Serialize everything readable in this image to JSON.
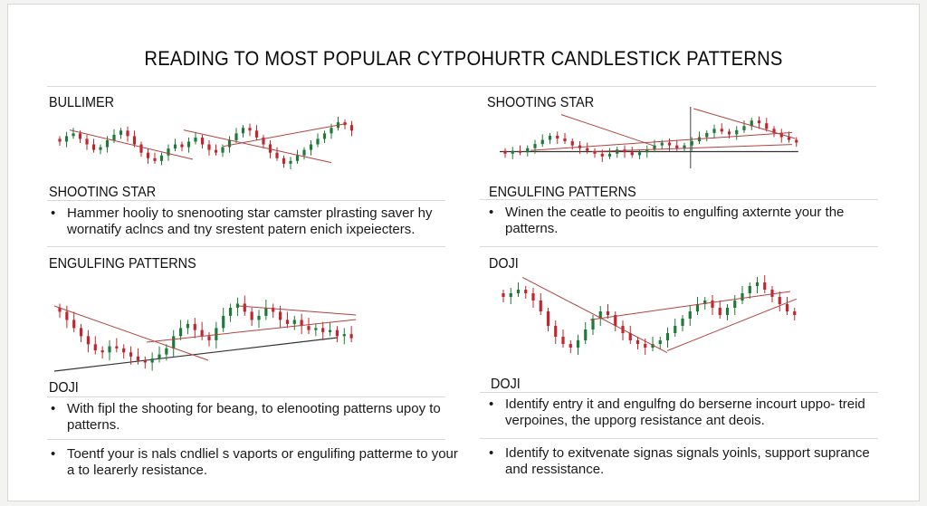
{
  "title": "READING TO MOST POPULAR CYTPOHURTR CANDLESTICK PATTERNS",
  "bullet_glyph": "•",
  "left": {
    "label1": "BULLIMER",
    "label2": "SHOOTING STAR",
    "bullet1": "Hammer hooliy to snenooting star camster plrasting saver hy wornatify aclncs and tny srestent patern enich ixpeiecters.",
    "label3": "ENGULFING PATTERNS",
    "label4": "DOJI",
    "bullet2": "With fipl the shooting for beang, to elenooting patterns upoy to patterns.",
    "bullet3": "Toentf your is nals cndliel s vaports or engulifing patterme to your a to learerly resistance."
  },
  "right": {
    "label1": "SHOOTING STAR",
    "label2": "ENGULFING PATTERNS",
    "bullet1": "Winen the ceatle to peoitis to engulfing axternte your the patterns.",
    "label3": "DOJI",
    "label4": "DOJI",
    "bullet2": "Identify entry it and engulfng do berserne incourt uppo- treid verpoines, the upporg resistance ant deois.",
    "bullet3": "Identify to exitvenate signas signals yoinls, support suprance and ressistance."
  },
  "colors": {
    "bull": "#1f7a3a",
    "bear": "#c0262d",
    "trend": "#b2423f",
    "support": "#333333"
  },
  "chart_data": [
    {
      "type": "candlestick",
      "section": "BULLIMER",
      "closes": [
        52,
        56,
        58,
        54,
        50,
        46,
        48,
        53,
        57,
        60,
        56,
        50,
        44,
        40,
        38,
        42,
        47,
        50,
        48,
        52,
        55,
        50,
        46,
        44,
        48,
        53,
        58,
        62,
        60,
        55,
        50,
        44,
        40,
        36,
        38,
        42,
        46,
        50,
        54,
        58,
        62,
        66,
        64,
        60
      ]
    },
    {
      "type": "candlestick",
      "section": "SHOOTING STAR",
      "closes": [
        64,
        60,
        56,
        52,
        48,
        45,
        44,
        47,
        46,
        44,
        42,
        40,
        39,
        41,
        43,
        46,
        52,
        56,
        58,
        55,
        52,
        50,
        56,
        62,
        66,
        68,
        64,
        60,
        62,
        66,
        64,
        60,
        58,
        60,
        57,
        55,
        56,
        54,
        55,
        52,
        53,
        51
      ]
    },
    {
      "type": "candlestick",
      "section": "ENGULFING PATTERNS",
      "closes": [
        40,
        42,
        41,
        44,
        47,
        50,
        53,
        51,
        49,
        46,
        44,
        42,
        40,
        38,
        40,
        43,
        41,
        39,
        41,
        43,
        46,
        48,
        46,
        44,
        46,
        49,
        52,
        55,
        58,
        56,
        54,
        57,
        60,
        64,
        62,
        58,
        55,
        52,
        50,
        48
      ]
    },
    {
      "type": "candlestick",
      "section": "DOJI",
      "closes": [
        66,
        68,
        70,
        68,
        64,
        58,
        50,
        44,
        40,
        38,
        42,
        48,
        54,
        58,
        56,
        50,
        46,
        42,
        40,
        38,
        40,
        42,
        46,
        50,
        54,
        58,
        62,
        64,
        60,
        56,
        60,
        64,
        68,
        72,
        74,
        70,
        66,
        62,
        58,
        56
      ]
    }
  ]
}
